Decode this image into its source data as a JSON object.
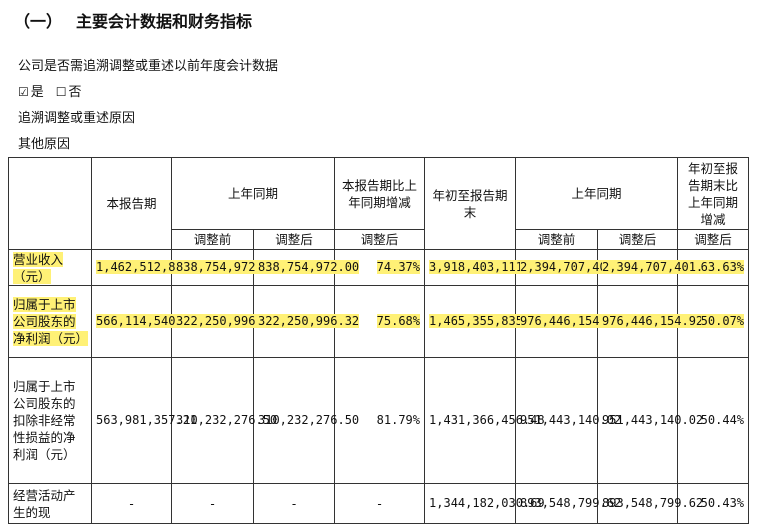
{
  "heading": {
    "num": "（一）",
    "title": "主要会计数据和财务指标"
  },
  "lines": {
    "question": "公司是否需追溯调整或重述以前年度会计数据",
    "yes_box": "☑",
    "yes": "是",
    "no_box": "☐",
    "no": "否",
    "reason": "追溯调整或重述原因",
    "other": "其他原因"
  },
  "table": {
    "headers": {
      "current_period": "本报告期",
      "prior_period": "上年同期",
      "change": "本报告期比上年同期增减",
      "ytd": "年初至报告期末",
      "prior_period_2": "上年同期",
      "ytd_change": "年初至报告期末比上年同期增减",
      "before": "调整前",
      "after": "调整后",
      "change_after": "调整后",
      "before_2": "调整前",
      "after_2": "调整后",
      "ytd_change_after": "调整后"
    },
    "rows": [
      {
        "label": "营业收入（元）",
        "c1": "1,462,512,812.49",
        "c2": "838,754,972.00",
        "c3": "838,754,972.00",
        "c4": "74.37%",
        "c5": "3,918,403,111.99",
        "c6": "2,394,707,401.46",
        "c7": "2,394,707,401.46",
        "c8": "63.63%"
      },
      {
        "label": "归属于上市公司股东的净利润（元）",
        "c1": "566,114,540.91",
        "c2": "322,250,996.32",
        "c3": "322,250,996.32",
        "c4": "75.68%",
        "c5": "1,465,355,835.83",
        "c6": "976,446,154.92",
        "c7": "976,446,154.92",
        "c8": "50.07%"
      },
      {
        "label": "归属于上市公司股东的扣除非经常性损益的净利润（元）",
        "c1": "563,981,357.21",
        "c2": "310,232,276.50",
        "c3": "310,232,276.50",
        "c4": "81.79%",
        "c5": "1,431,366,456.48",
        "c6": "951,443,140.02",
        "c7": "951,443,140.02",
        "c8": "50.44%"
      },
      {
        "label": "经营活动产生的现",
        "c1": "-",
        "c2": "-",
        "c3": "-",
        "c4": "-",
        "c5": "1,344,182,030.69",
        "c6": "893,548,799.62",
        "c7": "893,548,799.62",
        "c8": "50.43%"
      }
    ]
  }
}
